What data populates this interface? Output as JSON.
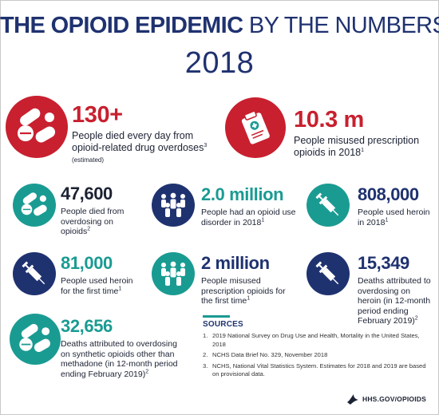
{
  "title": {
    "bold": "THE OPIOID EPIDEMIC",
    "light": "BY THE NUMBERS"
  },
  "year": "2018",
  "stats": {
    "deaths_daily": {
      "value": "130+",
      "text": "People died every day from opioid-related drug overdoses",
      "sup": "3",
      "note": "(estimated)",
      "icon": "pills-icon"
    },
    "misused_rx": {
      "value": "10.3 m",
      "text": "People misused prescription opioids in 2018",
      "sup": "1",
      "icon": "prescription-bottle-icon"
    },
    "overdose_deaths": {
      "value": "47,600",
      "text": "People died from overdosing on opioids",
      "sup": "2",
      "icon": "pills-icon"
    },
    "use_disorder": {
      "value": "2.0 million",
      "text": "People had an opioid use disorder in 2018",
      "sup": "1",
      "icon": "people-group-icon"
    },
    "heroin_users": {
      "value": "808,000",
      "text": "People used heroin in 2018",
      "sup": "1",
      "icon": "syringe-icon"
    },
    "heroin_first": {
      "value": "81,000",
      "text": "People used heroin for the first time",
      "sup": "1",
      "icon": "syringe-icon"
    },
    "rx_first": {
      "value": "2 million",
      "text": "People misused prescription opioids for the first time",
      "sup": "1",
      "icon": "people-group-icon"
    },
    "heroin_deaths": {
      "value": "15,349",
      "text": "Deaths attributed to overdosing on heroin (in 12-month period ending February 2019)",
      "sup": "2",
      "icon": "syringe-icon"
    },
    "synthetic_deaths": {
      "value": "32,656",
      "text": "Deaths attributed to overdosing on synthetic opioids other than methadone (in 12-month period ending February 2019)",
      "sup": "2",
      "icon": "pills-icon"
    }
  },
  "sources": {
    "title": "SOURCES",
    "items": [
      {
        "n": "1.",
        "text": "2019 National Survey on Drug Use and Health, Mortality in the United States, 2018"
      },
      {
        "n": "2.",
        "text": "NCHS Data Brief No. 329, November 2018"
      },
      {
        "n": "3.",
        "text": "NCHS, National Vital Statistics System. Estimates for 2018 and 2019 are based on provisional data."
      }
    ]
  },
  "logo": "HHS.GOV/OPIOIDS",
  "colors": {
    "red": "#c8202f",
    "teal": "#1a9b92",
    "navy": "#1f3270"
  }
}
